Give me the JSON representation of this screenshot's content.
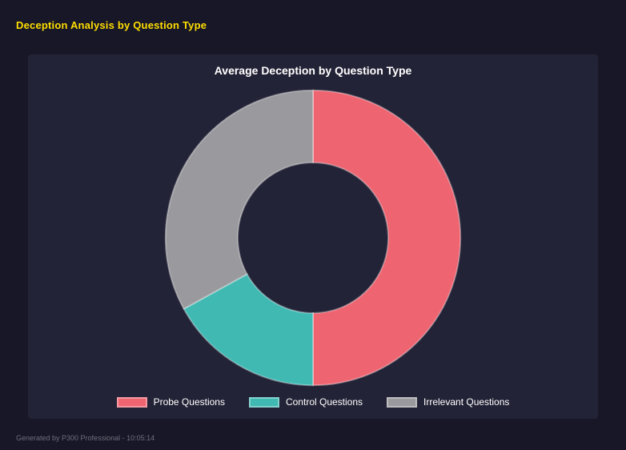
{
  "page": {
    "title": "Deception Analysis by Question Type",
    "footer": "Generated by P300 Professional - 10:05:14"
  },
  "chart_data": {
    "type": "pie",
    "subtype": "donut",
    "title": "Average Deception by Question Type",
    "categories": [
      "Probe Questions",
      "Control Questions",
      "Irrelevant Questions"
    ],
    "values": [
      50,
      17,
      33
    ],
    "unit": "percent",
    "colors": [
      "#ee6471",
      "#41b9b3",
      "#9a9a9e"
    ],
    "border_color": "rgba(255,255,255,0.35)",
    "legend_position": "bottom",
    "start_angle_deg": 0,
    "inner_radius_ratio": 0.51
  },
  "colors": {
    "page_bg": "#171727",
    "panel_bg": "#232337",
    "heading_text": "#ffdd00",
    "chart_title_text": "#ffffff",
    "legend_text": "#ffffff",
    "footer_text": "#6e6e7c"
  }
}
